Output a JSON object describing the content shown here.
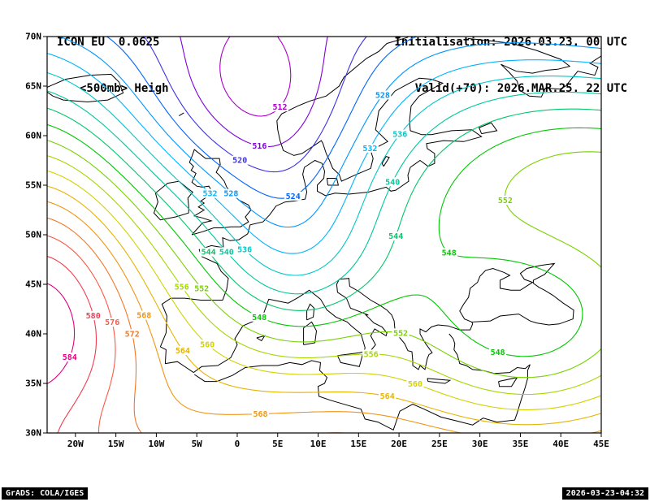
{
  "header": {
    "model_line": "ICON EU  0.0625",
    "field_line": "<500mb> Heigh",
    "init_line": "Initialisation: 2026.03.23. 00 UTC",
    "valid_line": "Valid(+70): 2026.MAR.25. 22 UTC"
  },
  "axes": {
    "lat_ticks": [
      {
        "v": 70,
        "label": "70N"
      },
      {
        "v": 65,
        "label": "65N"
      },
      {
        "v": 60,
        "label": "60N"
      },
      {
        "v": 55,
        "label": "55N"
      },
      {
        "v": 50,
        "label": "50N"
      },
      {
        "v": 45,
        "label": "45N"
      },
      {
        "v": 40,
        "label": "40N"
      },
      {
        "v": 35,
        "label": "35N"
      },
      {
        "v": 30,
        "label": "30N"
      }
    ],
    "lon_ticks": [
      {
        "v": -20,
        "label": "20W"
      },
      {
        "v": -15,
        "label": "15W"
      },
      {
        "v": -10,
        "label": "10W"
      },
      {
        "v": -5,
        "label": "5W"
      },
      {
        "v": 0,
        "label": "0"
      },
      {
        "v": 5,
        "label": "5E"
      },
      {
        "v": 10,
        "label": "10E"
      },
      {
        "v": 15,
        "label": "15E"
      },
      {
        "v": 20,
        "label": "20E"
      },
      {
        "v": 25,
        "label": "25E"
      },
      {
        "v": 30,
        "label": "30E"
      },
      {
        "v": 35,
        "label": "35E"
      },
      {
        "v": 40,
        "label": "40E"
      },
      {
        "v": 45,
        "label": "45E"
      }
    ]
  },
  "chart_data": {
    "type": "contour",
    "variable": "<500mb> Heigh",
    "model": "ICON EU 0.0625",
    "lon_range": [
      -23.5,
      45
    ],
    "lat_range": [
      30,
      70
    ],
    "levels": [
      512,
      516,
      520,
      524,
      528,
      532,
      536,
      540,
      544,
      548,
      552,
      556,
      560,
      564,
      568,
      572,
      576,
      580,
      584
    ],
    "colors": [
      "#aa00c8",
      "#8200dc",
      "#3c32e6",
      "#0064ff",
      "#0096ff",
      "#00b4ff",
      "#00c8c8",
      "#00c89b",
      "#00c86a",
      "#00c800",
      "#78d200",
      "#a5d700",
      "#d2d200",
      "#e6b400",
      "#f09614",
      "#f07828",
      "#fa5a46",
      "#f03c50",
      "#e10082"
    ],
    "field_model": {
      "base": 549,
      "base_lat": 50,
      "lat_slope": -1.3,
      "centers": [
        {
          "a": 26,
          "lon": -24,
          "lat": 44,
          "slon": 9,
          "slat": 11
        },
        {
          "a": 8,
          "lon": -30,
          "lat": 60,
          "slon": 10,
          "slat": 12
        },
        {
          "a": -19,
          "lon": 2,
          "lat": 63,
          "slon": 10,
          "slat": 7
        },
        {
          "a": -18,
          "lon": 7,
          "lat": 48,
          "slon": 8,
          "slat": 8
        },
        {
          "a": 16,
          "lon": 43,
          "lat": 57,
          "slon": 16,
          "slat": 10
        },
        {
          "a": -6,
          "lon": 50,
          "lat": 74,
          "slon": 12,
          "slat": 8
        },
        {
          "a": -20,
          "lon": 36,
          "lat": 40,
          "slon": 12,
          "slat": 8
        },
        {
          "a": -8,
          "lon": -15,
          "lat": 29,
          "slon": 12,
          "slat": 6
        }
      ]
    }
  },
  "footer": {
    "left": "GrADS: COLA/IGES",
    "right": "2026-03-23-04:32"
  }
}
